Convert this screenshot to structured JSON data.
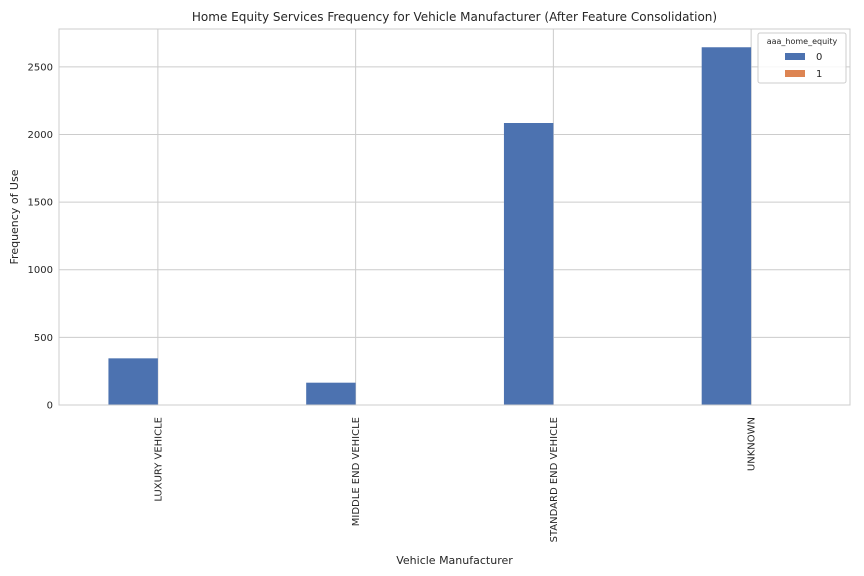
{
  "chart_data": {
    "type": "bar",
    "title": "Home Equity Services Frequency for Vehicle Manufacturer (After Feature Consolidation)",
    "xlabel": "Vehicle Manufacturer",
    "ylabel": "Frequency of Use",
    "categories": [
      "LUXURY VEHICLE",
      "MIDDLE END VEHICLE",
      "STANDARD END VEHICLE",
      "UNKNOWN"
    ],
    "series": [
      {
        "name": "0",
        "color": "#4c72b0",
        "values": [
          345,
          165,
          2085,
          2645
        ]
      },
      {
        "name": "1",
        "color": "#dd8452",
        "values": [
          0,
          0,
          0,
          0
        ]
      }
    ],
    "ylim": [
      0,
      2780
    ],
    "yticks": [
      0,
      500,
      1000,
      1500,
      2000,
      2500
    ],
    "grid": true,
    "legend": {
      "title": "aaa_home_equity",
      "placement": "top-right"
    }
  }
}
